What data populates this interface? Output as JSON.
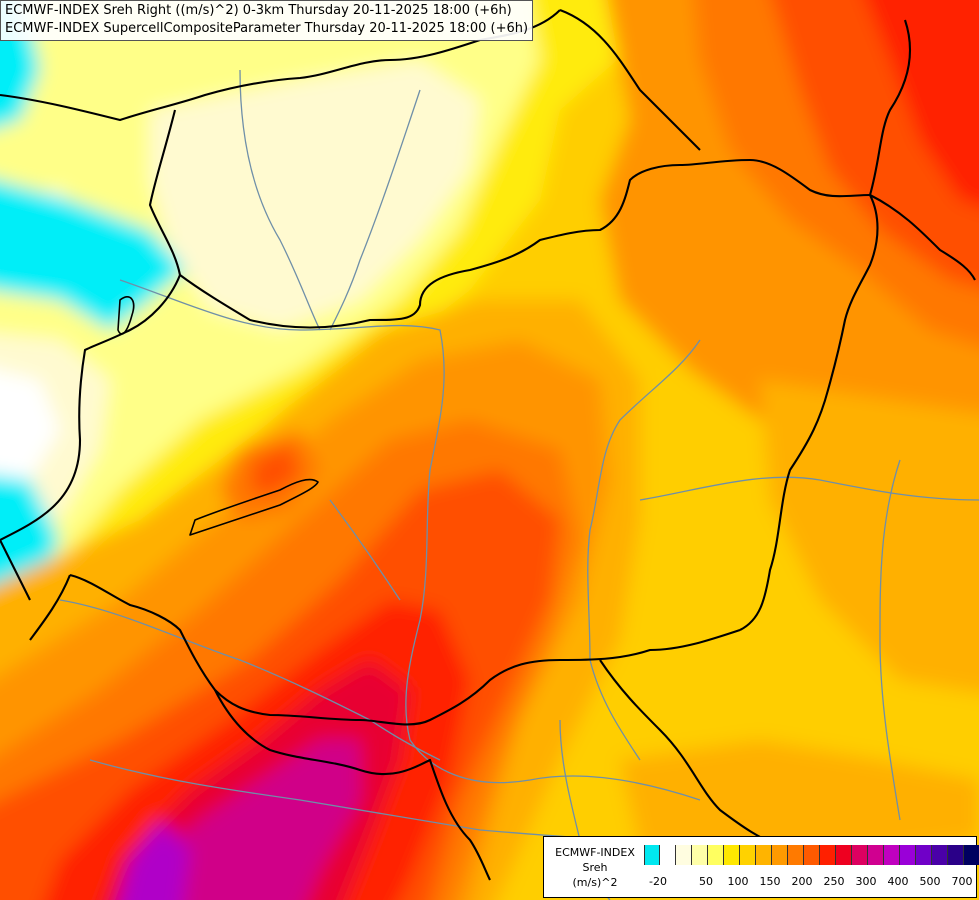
{
  "title_lines": [
    "ECMWF-INDEX Sreh Right ((m/s)^2) 0-3km Thursday 20-11-2025 18:00 (+6h)",
    "ECMWF-INDEX SupercellCompositeParameter Thursday 20-11-2025 18:00 (+6h)"
  ],
  "legend": {
    "name_lines": [
      "ECMWF-INDEX",
      "Sreh",
      "(m/s)^2"
    ],
    "colors": [
      "#00e8f0",
      "#ffffff",
      "#fffde0",
      "#ffffa8",
      "#ffff60",
      "#ffe800",
      "#ffd200",
      "#ffb400",
      "#ff9a00",
      "#ff7a00",
      "#ff5a00",
      "#ff2000",
      "#ee0020",
      "#dd0060",
      "#d00090",
      "#c000c0",
      "#9a00d8",
      "#7000c8",
      "#4a00a8",
      "#2a0088",
      "#000060"
    ],
    "tick_labels": [
      "-20",
      "50",
      "100",
      "150",
      "200",
      "250",
      "300",
      "400",
      "500",
      "700"
    ]
  },
  "map": {
    "field_colors": {
      "cyan": "#00eef8",
      "white": "#ffffff",
      "very_light": "#fffad0",
      "light_yellow": "#ffff88",
      "yellow": "#ffeb10",
      "gold": "#ffce00",
      "orange_light": "#ffb000",
      "orange": "#ff9400",
      "orange_dark": "#ff7800",
      "red_orange": "#ff5000",
      "red": "#ff2400",
      "crimson": "#e80030",
      "magenta": "#d00088",
      "purple": "#b000c8"
    },
    "border_color": "#000000",
    "river_color": "#6f8fa8"
  }
}
